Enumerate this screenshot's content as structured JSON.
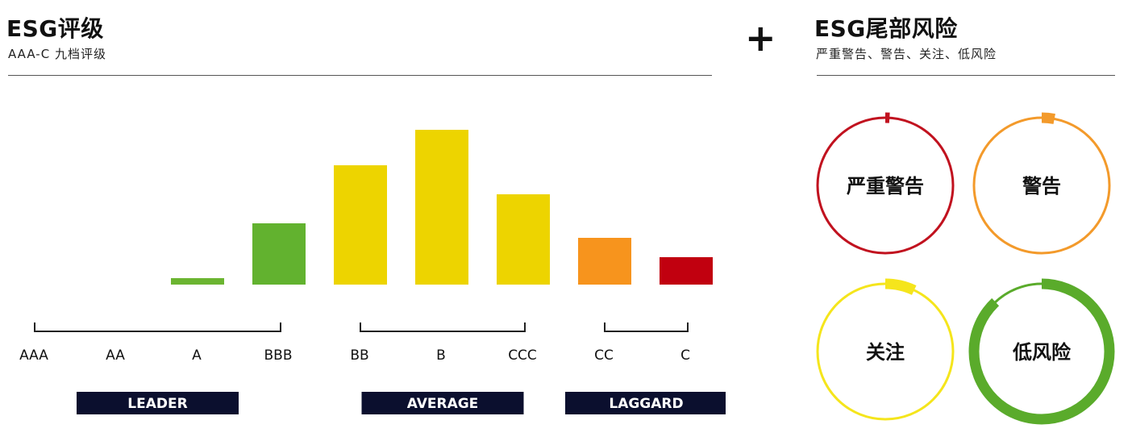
{
  "left_panel": {
    "title": "ESG评级",
    "subtitle": "AAA-C 九档评级"
  },
  "plus_sign": "+",
  "right_panel": {
    "title": "ESG尾部风险",
    "subtitle": "严重警告、警告、关注、低风险"
  },
  "chart_data": [
    {
      "type": "bar",
      "title": "ESG评级",
      "categories": [
        "AAA",
        "AA",
        "A",
        "BBB",
        "BB",
        "B",
        "CCC",
        "CC",
        "C"
      ],
      "values": [
        0,
        0,
        4,
        38,
        74,
        96,
        56,
        29,
        17
      ],
      "colors": [
        "#7cbf3a",
        "#7cbf3a",
        "#6bb531",
        "#62b22f",
        "#edd400",
        "#edd400",
        "#edd400",
        "#f7941d",
        "#c1000f"
      ],
      "groups": [
        {
          "name": "LEADER",
          "from": "AAA",
          "to": "BBB"
        },
        {
          "name": "AVERAGE",
          "from": "BB",
          "to": "CCC"
        },
        {
          "name": "LAGGARD",
          "from": "CC",
          "to": "C"
        }
      ],
      "grid": false,
      "legend": "none"
    },
    {
      "type": "pie",
      "title": "ESG尾部风险",
      "categories": [
        "严重警告",
        "警告",
        "关注",
        "低风险"
      ],
      "values": [
        1,
        3,
        7,
        88
      ],
      "unit": "% of ring filled (estimated)",
      "colors": [
        "#c1121f",
        "#f39a2b",
        "#f5e51c",
        "#5aab2b"
      ]
    }
  ]
}
